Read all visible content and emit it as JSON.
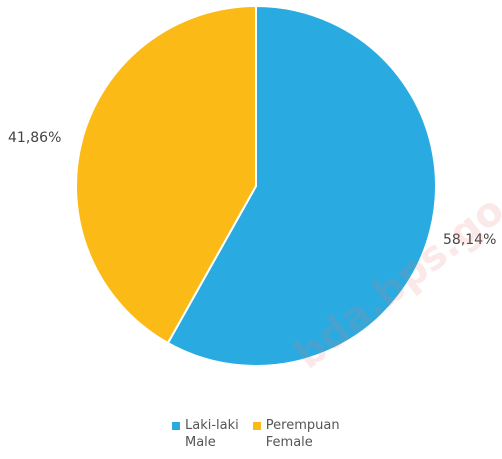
{
  "chart_data": {
    "type": "pie",
    "slices": [
      {
        "label": "Laki-laki",
        "label_en": "Male",
        "value": 58.14,
        "display": "58,14%",
        "color": "#29ABE2"
      },
      {
        "label": "Perempuan",
        "label_en": "Female",
        "value": 41.86,
        "display": "41,86%",
        "color": "#FBBA16"
      }
    ],
    "legend_position": "bottom"
  },
  "watermark": "bda.bps.go.id"
}
